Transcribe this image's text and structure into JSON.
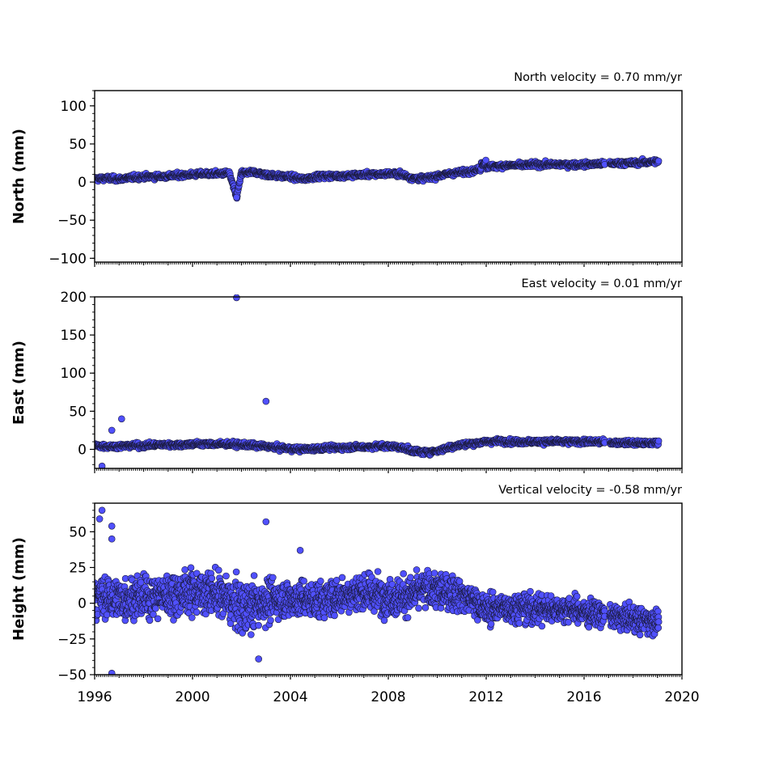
{
  "chart_data": [
    {
      "type": "scatter",
      "annotation": "North velocity = 0.70 mm/yr",
      "ylabel": "North (mm)",
      "xlim": [
        1996,
        2020
      ],
      "ylim": [
        -105,
        120
      ],
      "yticks": [
        100,
        50,
        0,
        -50,
        -100
      ],
      "ytick_labels": [
        "100",
        "50",
        "0",
        "−50",
        "−100"
      ],
      "grid": false,
      "color": "#5050ff",
      "x": [
        1996.0,
        1996.5,
        1997.0,
        1997.5,
        1998.0,
        1998.5,
        1999.0,
        1999.5,
        2000.0,
        2000.5,
        2001.0,
        2001.5,
        2001.8,
        2002.0,
        2002.5,
        2003.0,
        2003.5,
        2004.0,
        2004.5,
        2005.0,
        2005.5,
        2006.0,
        2006.5,
        2007.0,
        2007.5,
        2008.0,
        2008.5,
        2009.0,
        2009.5,
        2010.0,
        2010.5,
        2011.0,
        2011.5,
        2012.0,
        2012.5,
        2013.0,
        2013.5,
        2014.0,
        2014.5,
        2015.0,
        2015.5,
        2016.0,
        2016.5,
        2017.0,
        2017.5,
        2018.0,
        2018.5,
        2019.0
      ],
      "y": [
        4,
        5,
        4,
        6,
        7,
        7,
        8,
        9,
        10,
        11,
        11,
        12,
        -20,
        12,
        13,
        10,
        8,
        7,
        4,
        7,
        8,
        8,
        9,
        10,
        10,
        11,
        11,
        5,
        5,
        8,
        11,
        13,
        15,
        20,
        21,
        22,
        22,
        23,
        23,
        23,
        23,
        23,
        24,
        24,
        25,
        25,
        26,
        27
      ]
    },
    {
      "type": "scatter",
      "annotation": "East velocity = 0.01 mm/yr",
      "ylabel": "East (mm)",
      "xlim": [
        1996,
        2020
      ],
      "ylim": [
        -25,
        200
      ],
      "yticks": [
        200,
        150,
        100,
        50,
        0
      ],
      "ytick_labels": [
        "200",
        "150",
        "100",
        "50",
        "0"
      ],
      "grid": false,
      "color": "#5050ff",
      "outliers": [
        [
          2001.8,
          199
        ],
        [
          2003.0,
          63
        ],
        [
          1997.1,
          40
        ],
        [
          1996.7,
          25
        ],
        [
          1996.3,
          -22
        ]
      ],
      "x": [
        1996.0,
        1996.5,
        1997.0,
        1997.5,
        1998.0,
        1998.5,
        1999.0,
        1999.5,
        2000.0,
        2000.5,
        2001.0,
        2001.5,
        2002.0,
        2002.5,
        2003.0,
        2003.5,
        2004.0,
        2004.5,
        2005.0,
        2005.5,
        2006.0,
        2006.5,
        2007.0,
        2007.5,
        2008.0,
        2008.5,
        2009.0,
        2009.5,
        2010.0,
        2010.5,
        2011.0,
        2011.5,
        2012.0,
        2012.5,
        2013.0,
        2013.5,
        2014.0,
        2014.5,
        2015.0,
        2015.5,
        2016.0,
        2016.5,
        2017.0,
        2017.5,
        2018.0,
        2018.5,
        2019.0
      ],
      "y": [
        5,
        4,
        4,
        5,
        5,
        6,
        6,
        6,
        7,
        7,
        7,
        7,
        6,
        5,
        4,
        2,
        1,
        0,
        1,
        2,
        2,
        3,
        3,
        4,
        4,
        3,
        -2,
        -4,
        -2,
        3,
        6,
        8,
        10,
        11,
        10,
        10,
        10,
        10,
        10,
        10,
        10,
        10,
        9,
        9,
        8,
        8,
        9
      ]
    },
    {
      "type": "scatter",
      "annotation": "Vertical velocity = -0.58 mm/yr",
      "ylabel": "Height (mm)",
      "xlabel": "",
      "xlim": [
        1996,
        2020
      ],
      "ylim": [
        -50,
        70
      ],
      "yticks": [
        50,
        25,
        0,
        -25,
        -50
      ],
      "ytick_labels": [
        "50",
        "25",
        "0",
        "−25",
        "−50"
      ],
      "xticks": [
        1996,
        2000,
        2004,
        2008,
        2012,
        2016,
        2020
      ],
      "xtick_labels": [
        "1996",
        "2000",
        "2004",
        "2008",
        "2012",
        "2016",
        "2020"
      ],
      "grid": false,
      "color": "#5050ff",
      "outliers": [
        [
          1996.2,
          59
        ],
        [
          1996.3,
          65
        ],
        [
          1996.7,
          54
        ],
        [
          1996.7,
          45
        ],
        [
          2003.0,
          57
        ],
        [
          2002.7,
          -39
        ],
        [
          1996.7,
          -49
        ],
        [
          2004.4,
          37
        ]
      ],
      "x": [
        1996.0,
        1996.5,
        1997.0,
        1997.5,
        1998.0,
        1998.5,
        1999.0,
        1999.5,
        2000.0,
        2000.5,
        2001.0,
        2001.5,
        2002.0,
        2002.5,
        2003.0,
        2003.5,
        2004.0,
        2004.5,
        2005.0,
        2005.5,
        2006.0,
        2006.5,
        2007.0,
        2007.5,
        2008.0,
        2008.5,
        2009.0,
        2009.5,
        2010.0,
        2010.5,
        2011.0,
        2011.5,
        2012.0,
        2012.5,
        2013.0,
        2013.5,
        2014.0,
        2014.5,
        2015.0,
        2015.5,
        2016.0,
        2016.5,
        2017.0,
        2017.5,
        2018.0,
        2018.5,
        2019.0
      ],
      "y": [
        5,
        4,
        3,
        4,
        4,
        5,
        6,
        7,
        8,
        8,
        6,
        2,
        -3,
        -2,
        2,
        3,
        3,
        3,
        2,
        3,
        5,
        7,
        8,
        6,
        5,
        4,
        6,
        10,
        9,
        8,
        6,
        2,
        -5,
        -3,
        -3,
        -3,
        -4,
        -4,
        -4,
        -4,
        -6,
        -7,
        -9,
        -10,
        -11,
        -12,
        -12
      ],
      "spread": [
        10,
        10,
        10,
        10,
        10,
        10,
        10,
        10,
        10,
        10,
        10,
        10,
        12,
        12,
        10,
        9,
        9,
        9,
        9,
        9,
        9,
        9,
        9,
        9,
        9,
        9,
        9,
        9,
        9,
        8,
        8,
        7,
        7,
        7,
        7,
        7,
        7,
        7,
        6,
        6,
        6,
        6,
        6,
        6,
        6,
        6,
        6
      ]
    }
  ]
}
